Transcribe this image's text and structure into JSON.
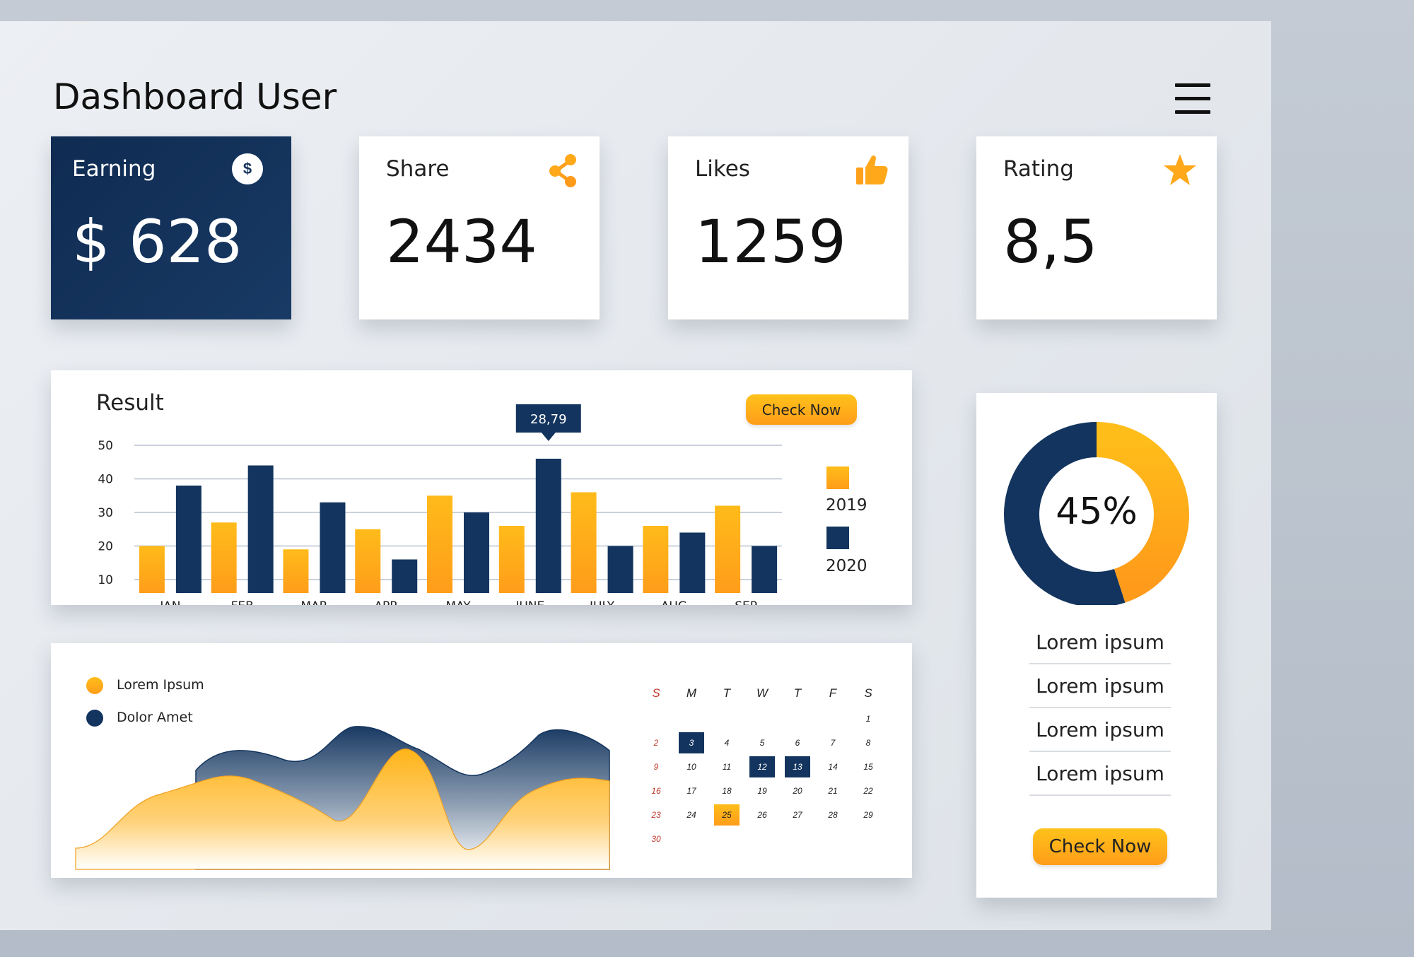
{
  "header": {
    "title": "Dashboard User"
  },
  "stats": {
    "earning": {
      "label": "Earning",
      "value": "$ 628",
      "badge": "$"
    },
    "share": {
      "label": "Share",
      "value": "2434"
    },
    "likes": {
      "label": "Likes",
      "value": "1259"
    },
    "rating": {
      "label": "Rating",
      "value": "8,5"
    }
  },
  "result": {
    "title": "Result",
    "button": "Check Now",
    "tooltip": "28,79",
    "legend": [
      "2019",
      "2020"
    ]
  },
  "area_panel": {
    "legend": [
      "Lorem Ipsum",
      "Dolor Amet"
    ]
  },
  "calendar": {
    "weekdays": [
      "S",
      "M",
      "T",
      "W",
      "T",
      "F",
      "S"
    ],
    "weeks": [
      [
        "",
        "",
        "",
        "",
        "",
        "",
        "1"
      ],
      [
        "2",
        "3",
        "4",
        "5",
        "6",
        "7",
        "8"
      ],
      [
        "9",
        "10",
        "11",
        "12",
        "13",
        "14",
        "15"
      ],
      [
        "16",
        "17",
        "18",
        "19",
        "20",
        "21",
        "22"
      ],
      [
        "23",
        "24",
        "25",
        "26",
        "27",
        "28",
        "29"
      ],
      [
        "30",
        "",
        "",
        "",
        "",
        "",
        ""
      ]
    ],
    "highlight_navy": [
      "3",
      "12",
      "13"
    ],
    "highlight_orange": [
      "25"
    ]
  },
  "donut": {
    "label": "45%",
    "items": [
      "Lorem ipsum",
      "Lorem ipsum",
      "Lorem ipsum",
      "Lorem ipsum"
    ],
    "button": "Check Now"
  },
  "colors": {
    "navy": "#13345e",
    "orange": "#ffa41b",
    "accent": "#ffc21a"
  },
  "chart_data": [
    {
      "type": "bar",
      "title": "Result",
      "categories": [
        "JAN",
        "FEB",
        "MAR",
        "APR",
        "MAY",
        "JUNE",
        "JULY",
        "AUG",
        "SEP"
      ],
      "series": [
        {
          "name": "2019",
          "values": [
            20,
            27,
            19,
            25,
            35,
            26,
            36,
            26,
            32
          ]
        },
        {
          "name": "2020",
          "values": [
            38,
            44,
            33,
            16,
            30,
            46,
            20,
            24,
            20
          ]
        }
      ],
      "yticks": [
        10,
        20,
        30,
        40,
        50
      ],
      "ylim": [
        6,
        50
      ],
      "grid": true,
      "legend": "right"
    },
    {
      "type": "donut",
      "values": [
        45,
        55
      ],
      "label": "45%"
    }
  ]
}
